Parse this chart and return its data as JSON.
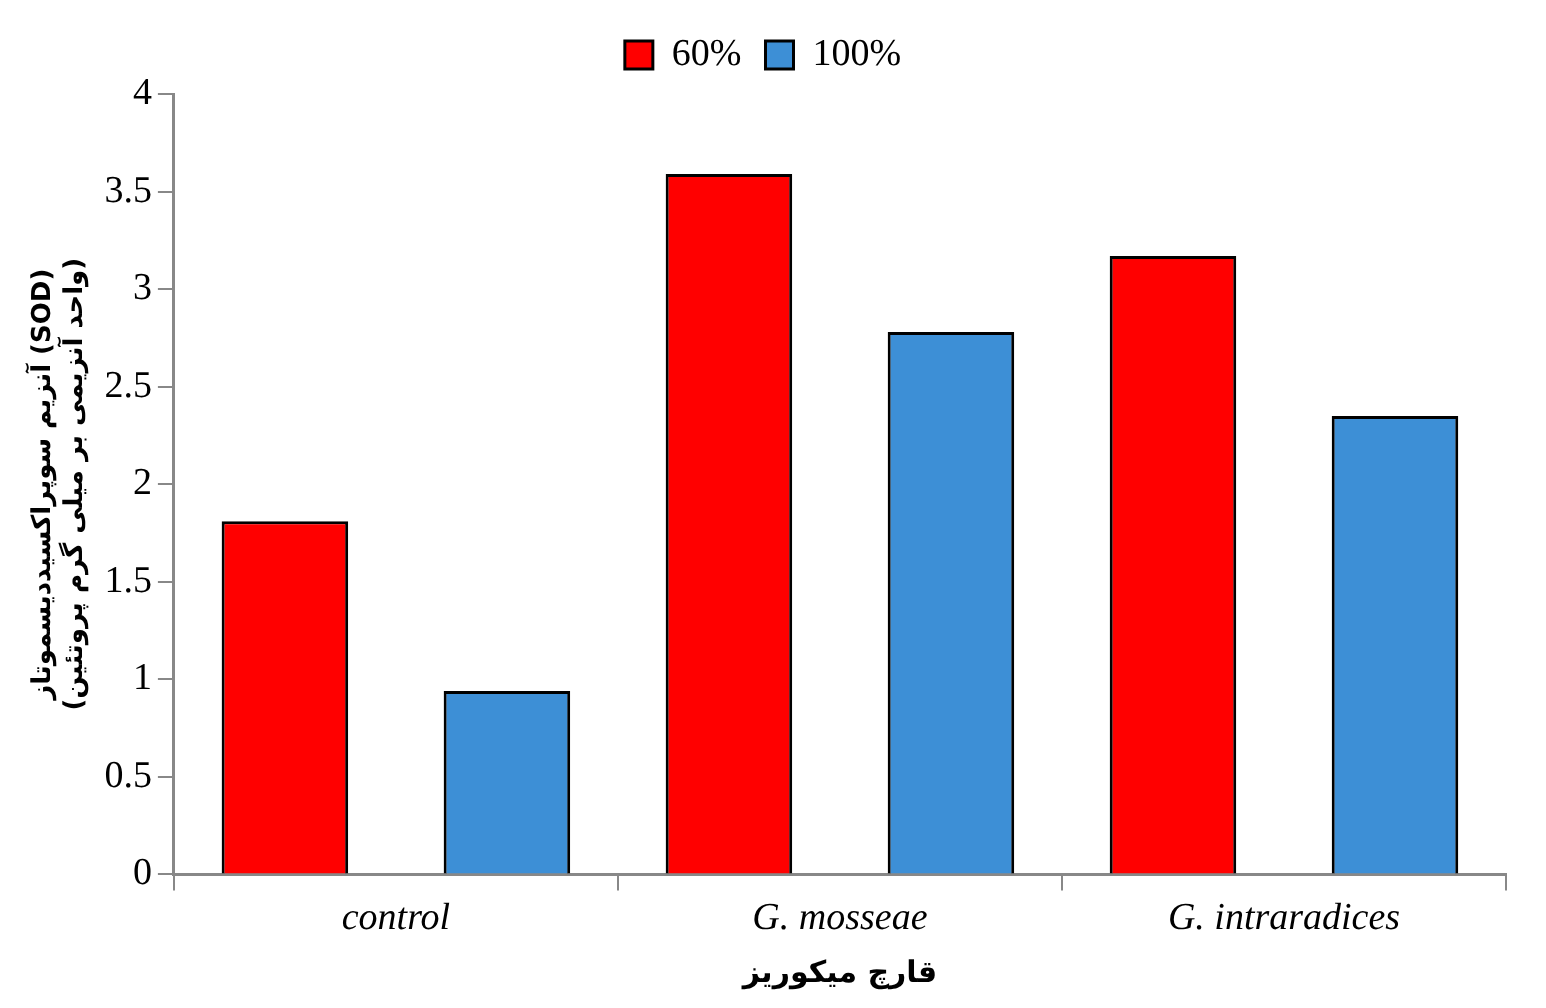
{
  "chart_data": {
    "type": "bar",
    "categories": [
      "control",
      "G. mosseae",
      "G. intraradices"
    ],
    "series": [
      {
        "name": "60%",
        "color": "#ff0000",
        "values": [
          1.81,
          3.59,
          3.17
        ]
      },
      {
        "name": "100%",
        "color": "#3d8fd6",
        "values": [
          0.94,
          2.78,
          2.35
        ]
      }
    ],
    "xlabel": "قارچ میکوریز",
    "ylabel": "آنزیم سوپراکسیددیسموتاز (SOD)\n(واحد آنزیمی بر میلی گرم پروتئین)",
    "ylim": [
      0,
      4
    ],
    "yticks": [
      0,
      0.5,
      1,
      1.5,
      2,
      2.5,
      3,
      3.5,
      4
    ],
    "grid": false,
    "legend": "top"
  }
}
